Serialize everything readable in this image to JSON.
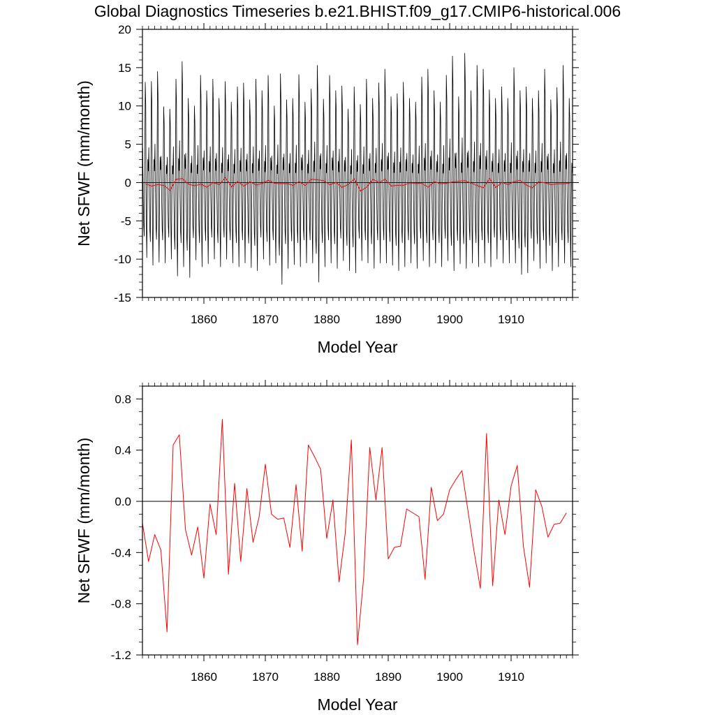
{
  "title": "Global Diagnostics Timeseries b.e21.BHIST.f09_g17.CMIP6-historical.006",
  "colors": {
    "monthly": "#000000",
    "annual": "#ff0000",
    "zero_line": "#000000",
    "frame": "#000000"
  },
  "chart_data": [
    {
      "type": "line",
      "name": "monthly-panel",
      "xlabel": "Model Year",
      "ylabel": "Net SFWF (mm/month)",
      "xlim": [
        1850,
        1920
      ],
      "ylim": [
        -15,
        20
      ],
      "xticks": [
        1860,
        1870,
        1880,
        1890,
        1900,
        1910
      ],
      "xtick_labels": [
        "1860",
        "1870",
        "1880",
        "1890",
        "1900",
        "1910"
      ],
      "yticks": [
        -15,
        -10,
        -5,
        0,
        5,
        10,
        15,
        20
      ],
      "ytick_labels": [
        "-15",
        "-10",
        "-5",
        "0",
        "5",
        "10",
        "15",
        "20"
      ],
      "zero_line": 0,
      "grid": false,
      "series": [
        {
          "key": "monthly",
          "color": "#000000",
          "seasonal_cycle": {
            "x_start": 1850.04,
            "step": 0.0833333,
            "years": 70,
            "months_per_year": 12,
            "cycle": [
              4.5,
              -2.0,
              -6.0,
              -7.5,
              2.0,
              13.0,
              10.0,
              -5.5,
              -10.5,
              -2.0,
              3.0,
              1.5
            ]
          },
          "yearly_peaks": [
            13.1,
            13.2,
            14.5,
            9.9,
            9.6,
            13.5,
            15.8,
            11.0,
            10.0,
            14.0,
            12.0,
            13.5,
            11.0,
            13.2,
            10.5,
            12.5,
            13.0,
            10.8,
            13.5,
            12.0,
            14.0,
            10.0,
            14.2,
            10.8,
            11.0,
            14.1,
            10.5,
            12.2,
            15.3,
            10.9,
            14.0,
            12.0,
            12.6,
            9.6,
            12.5,
            10.2,
            13.5,
            11.0,
            13.0,
            14.8,
            11.2,
            11.6,
            13.1,
            11.0,
            10.5,
            13.8,
            14.8,
            12.0,
            10.5,
            14.0,
            16.5,
            11.2,
            16.9,
            12.0,
            15.3,
            14.8,
            12.1,
            11.0,
            12.5,
            11.0,
            15.0,
            12.0,
            12.5,
            11.0,
            12.0,
            14.8,
            10.8,
            12.4,
            15.3,
            11.0
          ],
          "yearly_troughs": [
            -9.8,
            -10.8,
            -10.4,
            -10.5,
            -10.0,
            -12.2,
            -11.0,
            -12.4,
            -10.1,
            -11.0,
            -10.6,
            -10.0,
            -11.0,
            -10.0,
            -10.5,
            -11.0,
            -10.5,
            -11.1,
            -11.5,
            -10.0,
            -10.8,
            -10.5,
            -13.3,
            -11.2,
            -10.7,
            -11.0,
            -10.5,
            -10.5,
            -13.0,
            -11.0,
            -10.5,
            -11.2,
            -10.2,
            -11.5,
            -11.8,
            -10.2,
            -10.5,
            -11.2,
            -10.5,
            -10.5,
            -10.8,
            -11.5,
            -11.0,
            -10.5,
            -11.2,
            -10.2,
            -11.0,
            -10.5,
            -11.0,
            -10.2,
            -11.5,
            -10.6,
            -11.2,
            -10.5,
            -11.0,
            -10.5,
            -11.0,
            -10.0,
            -10.5,
            -10.5,
            -10.5,
            -12.0,
            -11.8,
            -10.2,
            -11.2,
            -10.5,
            -11.5,
            -11.0,
            -10.5,
            -11.0
          ]
        },
        {
          "key": "annual",
          "color": "#ff0000",
          "x": [
            1850.5,
            1851.5,
            1852.5,
            1853.5,
            1854.5,
            1855.5,
            1856.5,
            1857.5,
            1858.5,
            1859.5,
            1860.5,
            1861.5,
            1862.5,
            1863.5,
            1864.5,
            1865.5,
            1866.5,
            1867.5,
            1868.5,
            1869.5,
            1870.5,
            1871.5,
            1872.5,
            1873.5,
            1874.5,
            1875.5,
            1876.5,
            1877.5,
            1878.5,
            1879.5,
            1880.5,
            1881.5,
            1882.5,
            1883.5,
            1884.5,
            1885.5,
            1886.5,
            1887.5,
            1888.5,
            1889.5,
            1890.5,
            1891.5,
            1892.5,
            1893.5,
            1894.5,
            1895.5,
            1896.5,
            1897.5,
            1898.5,
            1899.5,
            1900.5,
            1901.5,
            1902.5,
            1903.5,
            1904.5,
            1905.5,
            1906.5,
            1907.5,
            1908.5,
            1909.5,
            1910.5,
            1911.5,
            1912.5,
            1913.5,
            1914.5,
            1915.5,
            1916.5,
            1917.5,
            1918.5,
            1919.5
          ],
          "y": [
            -0.17,
            -0.47,
            -0.26,
            -0.38,
            -1.02,
            0.44,
            0.52,
            -0.22,
            -0.42,
            -0.2,
            -0.6,
            -0.02,
            -0.26,
            0.64,
            -0.57,
            0.14,
            -0.47,
            0.1,
            -0.32,
            -0.12,
            0.29,
            -0.1,
            -0.14,
            -0.13,
            -0.36,
            0.13,
            -0.39,
            0.44,
            0.35,
            0.25,
            -0.29,
            0.01,
            -0.63,
            -0.25,
            0.48,
            -1.12,
            -0.6,
            0.42,
            0.01,
            0.42,
            -0.45,
            -0.36,
            -0.35,
            -0.06,
            -0.09,
            -0.12,
            -0.61,
            0.11,
            -0.15,
            -0.1,
            0.09,
            0.17,
            0.24,
            -0.08,
            -0.4,
            -0.68,
            0.53,
            -0.66,
            0.01,
            -0.26,
            0.12,
            0.28,
            -0.35,
            -0.67,
            0.09,
            -0.04,
            -0.28,
            -0.18,
            -0.17,
            -0.09
          ]
        }
      ]
    },
    {
      "type": "line",
      "name": "annual-panel",
      "xlabel": "Model Year",
      "ylabel": "Net SFWF (mm/month)",
      "xlim": [
        1850,
        1920
      ],
      "ylim": [
        -1.2,
        0.9
      ],
      "xticks": [
        1860,
        1870,
        1880,
        1890,
        1900,
        1910
      ],
      "xtick_labels": [
        "1860",
        "1870",
        "1880",
        "1890",
        "1900",
        "1910"
      ],
      "yticks": [
        -1.2,
        -0.8,
        -0.4,
        0.0,
        0.4,
        0.8
      ],
      "ytick_labels": [
        "-1.2",
        "-0.8",
        "-0.4",
        "0.0",
        "0.4",
        "0.8"
      ],
      "zero_line": 0,
      "grid": false,
      "series": [
        {
          "key": "annual",
          "color": "#ff0000",
          "x": [
            1850.0,
            1851.0,
            1852.0,
            1853.0,
            1854.0,
            1855.0,
            1856.0,
            1857.0,
            1858.0,
            1859.0,
            1860.0,
            1861.0,
            1862.0,
            1863.0,
            1864.0,
            1865.0,
            1866.0,
            1867.0,
            1868.0,
            1869.0,
            1870.0,
            1871.0,
            1872.0,
            1873.0,
            1874.0,
            1875.0,
            1876.0,
            1877.0,
            1878.0,
            1879.0,
            1880.0,
            1881.0,
            1882.0,
            1883.0,
            1884.0,
            1885.0,
            1886.0,
            1887.0,
            1888.0,
            1889.0,
            1890.0,
            1891.0,
            1892.0,
            1893.0,
            1894.0,
            1895.0,
            1896.0,
            1897.0,
            1898.0,
            1899.0,
            1900.0,
            1901.0,
            1902.0,
            1903.0,
            1904.0,
            1905.0,
            1906.0,
            1907.0,
            1908.0,
            1909.0,
            1910.0,
            1911.0,
            1912.0,
            1913.0,
            1914.0,
            1915.0,
            1916.0,
            1917.0,
            1918.0,
            1919.0
          ],
          "y": [
            -0.17,
            -0.47,
            -0.26,
            -0.38,
            -1.02,
            0.44,
            0.52,
            -0.22,
            -0.42,
            -0.2,
            -0.6,
            -0.02,
            -0.26,
            0.64,
            -0.57,
            0.14,
            -0.47,
            0.1,
            -0.32,
            -0.12,
            0.29,
            -0.1,
            -0.14,
            -0.13,
            -0.36,
            0.13,
            -0.39,
            0.44,
            0.35,
            0.25,
            -0.29,
            0.01,
            -0.63,
            -0.25,
            0.48,
            -1.12,
            -0.6,
            0.42,
            0.01,
            0.42,
            -0.45,
            -0.36,
            -0.35,
            -0.06,
            -0.09,
            -0.12,
            -0.61,
            0.11,
            -0.15,
            -0.1,
            0.09,
            0.17,
            0.24,
            -0.08,
            -0.4,
            -0.68,
            0.53,
            -0.66,
            0.01,
            -0.26,
            0.12,
            0.28,
            -0.35,
            -0.67,
            0.09,
            -0.04,
            -0.28,
            -0.18,
            -0.17,
            -0.09
          ]
        }
      ]
    }
  ]
}
